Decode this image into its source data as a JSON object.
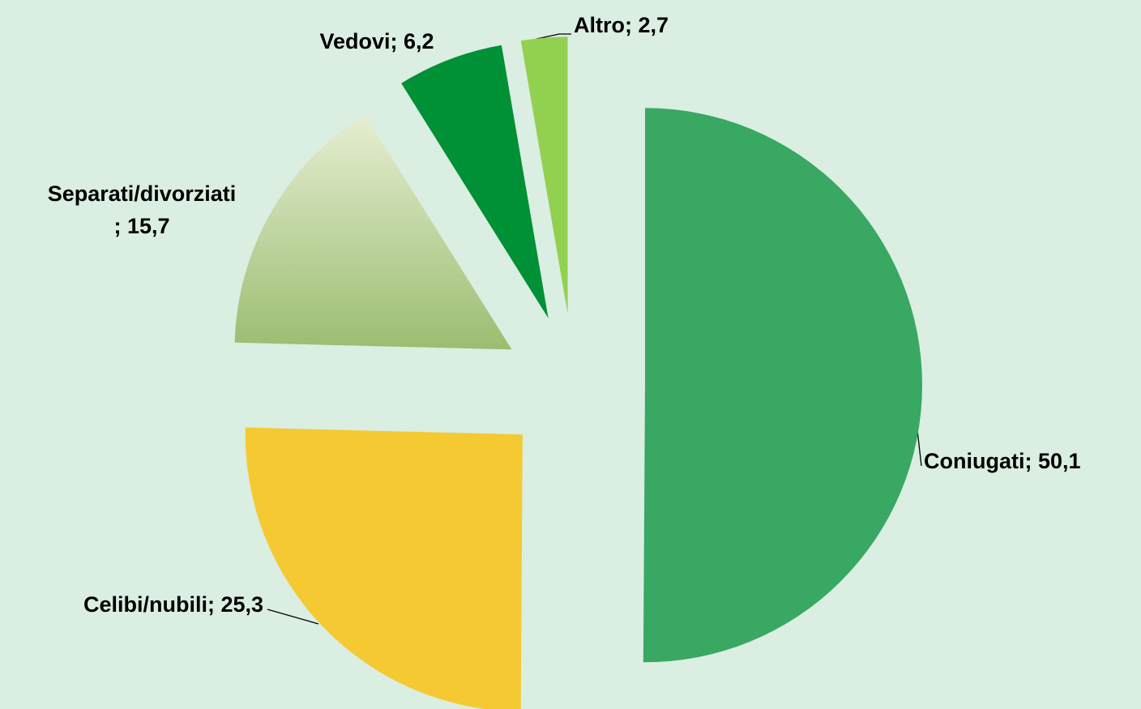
{
  "chart_data": {
    "type": "pie",
    "values": [
      50.1,
      25.3,
      15.7,
      6.2,
      2.7
    ],
    "value_labels": [
      "Coniugati; 50,1",
      "Celibi/nubili; 25,3",
      "Separati/divorziati\n; 15,7",
      "Vedovi; 6,2",
      "Altro; 2,7"
    ],
    "colors": [
      "#38a862",
      "#f5c932",
      "gradient",
      "#009036",
      "#92d050"
    ]
  }
}
